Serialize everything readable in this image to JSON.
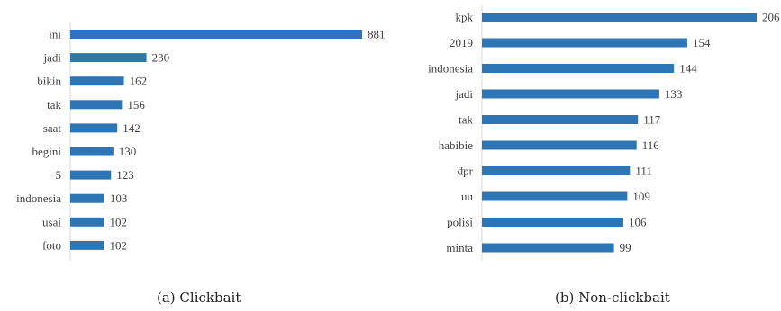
{
  "chart_data": [
    {
      "type": "bar",
      "orientation": "horizontal",
      "caption": "(a) Clickbait",
      "categories": [
        "ini",
        "jadi",
        "bikin",
        "tak",
        "saat",
        "begini",
        "5",
        "indonesia",
        "usai",
        "foto"
      ],
      "values": [
        881,
        230,
        162,
        156,
        142,
        130,
        123,
        103,
        102,
        102
      ],
      "data_labels": [
        "881",
        "230",
        "162",
        "156",
        "142",
        "130",
        "123",
        "103",
        "102",
        "102"
      ],
      "bar_color": "#2e75b6",
      "grid": false,
      "legend": "none"
    },
    {
      "type": "bar",
      "orientation": "horizontal",
      "caption": "(b) Non-clickbait",
      "categories": [
        "kpk",
        "2019",
        "indonesia",
        "jadi",
        "tak",
        "habibie",
        "dpr",
        "uu",
        "polisi",
        "minta"
      ],
      "values": [
        206,
        154,
        144,
        133,
        117,
        116,
        111,
        109,
        106,
        99
      ],
      "data_labels": [
        "206",
        "154",
        "144",
        "133",
        "117",
        "116",
        "111",
        "109",
        "106",
        "99"
      ],
      "bar_color": "#2e75b6",
      "grid": false,
      "legend": "none"
    }
  ]
}
